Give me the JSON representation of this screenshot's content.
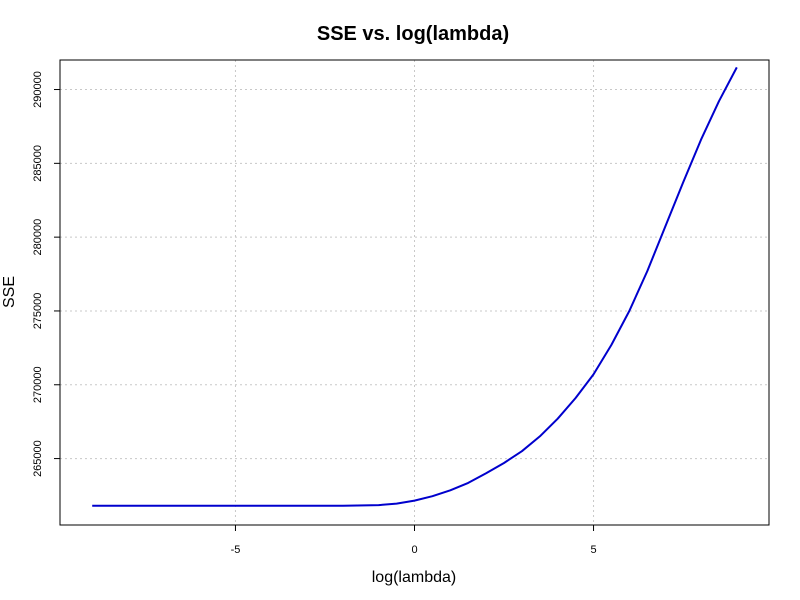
{
  "chart_data": {
    "type": "line",
    "title": "SSE vs. log(lambda)",
    "xlabel": "log(lambda)",
    "ylabel": "SSE",
    "xlim": [
      -9.9,
      9.9
    ],
    "ylim": [
      260500,
      292000
    ],
    "grid": true,
    "line_color": "#0000cd",
    "x_ticks": [
      -5,
      0,
      5
    ],
    "y_ticks": [
      265000,
      270000,
      275000,
      280000,
      285000,
      290000
    ],
    "x_tick_labels": [
      "-5",
      "0",
      "5"
    ],
    "y_tick_labels": [
      "265000",
      "270000",
      "275000",
      "280000",
      "285000",
      "290000"
    ],
    "series": [
      {
        "x": [
          -9.0,
          -8.0,
          -7.0,
          -6.0,
          -5.0,
          -4.0,
          -3.0,
          -2.0,
          -1.0,
          -0.5,
          0.0,
          0.5,
          1.0,
          1.5,
          2.0,
          2.5,
          3.0,
          3.5,
          4.0,
          4.5,
          5.0,
          5.5,
          6.0,
          6.5,
          7.0,
          7.5,
          8.0,
          8.5,
          9.0
        ],
        "y": [
          261800,
          261800,
          261800,
          261800,
          261800,
          261800,
          261800,
          261810,
          261850,
          261950,
          262150,
          262450,
          262850,
          263350,
          264000,
          264700,
          265500,
          266500,
          267700,
          269100,
          270700,
          272700,
          275000,
          277700,
          280700,
          283700,
          286600,
          289200,
          291500
        ]
      }
    ]
  }
}
